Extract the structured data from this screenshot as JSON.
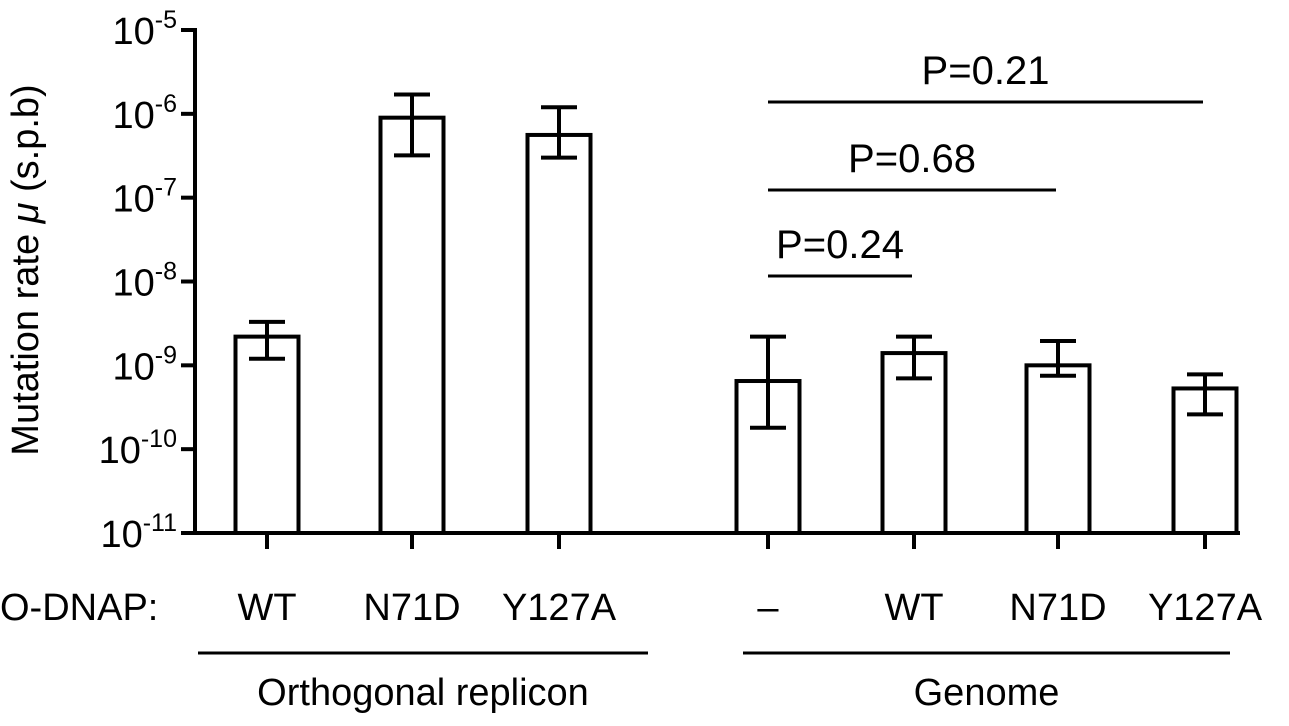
{
  "chart_data": {
    "type": "bar",
    "y_scale": "log",
    "ylim": [
      1e-11,
      1e-05
    ],
    "ylabel_prefix": "Mutation rate ",
    "ylabel_symbol": "μ",
    "ylabel_suffix": " (s.p.b)",
    "y_ticks": [
      {
        "base": "10",
        "exp": "-11",
        "value": 1e-11
      },
      {
        "base": "10",
        "exp": "-10",
        "value": 1e-10
      },
      {
        "base": "10",
        "exp": "-9",
        "value": 1e-09
      },
      {
        "base": "10",
        "exp": "-8",
        "value": 1e-08
      },
      {
        "base": "10",
        "exp": "-7",
        "value": 1e-07
      },
      {
        "base": "10",
        "exp": "-6",
        "value": 1e-06
      },
      {
        "base": "10",
        "exp": "-5",
        "value": 1e-05
      }
    ],
    "row_label": "O-DNAP:",
    "categories": [
      "WT",
      "N71D",
      "Y127A",
      "–",
      "WT",
      "N71D",
      "Y127A"
    ],
    "values": [
      2.2e-09,
      9e-07,
      5.6e-07,
      6.5e-10,
      1.4e-09,
      1e-09,
      5.3e-10
    ],
    "error_low": [
      1.2e-09,
      3.2e-07,
      3e-07,
      1.8e-10,
      7e-10,
      7.5e-10,
      2.6e-10
    ],
    "error_high": [
      3.3e-09,
      1.7e-06,
      1.2e-06,
      2.2e-09,
      2.2e-09,
      1.95e-09,
      7.8e-10
    ],
    "groups": [
      {
        "label": "Orthogonal replicon",
        "category_indices": [
          0,
          1,
          2
        ]
      },
      {
        "label": "Genome",
        "category_indices": [
          3,
          4,
          5,
          6
        ]
      }
    ],
    "comparisons": [
      {
        "from": 3,
        "to": 6,
        "label": "P=0.21"
      },
      {
        "from": 3,
        "to": 5,
        "label": "P=0.68"
      },
      {
        "from": 3,
        "to": 4,
        "label": "P=0.24"
      }
    ],
    "grid": false,
    "legend": "none"
  }
}
